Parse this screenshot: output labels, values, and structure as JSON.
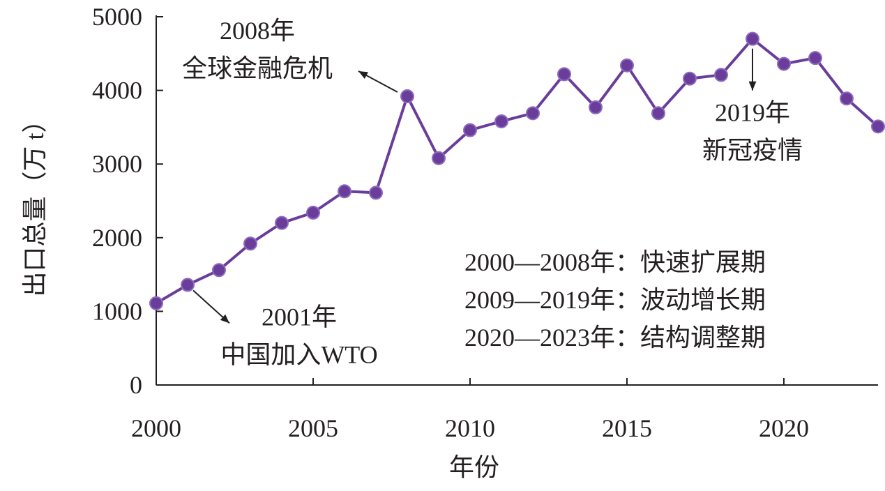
{
  "chart_data": {
    "type": "line",
    "xlabel": "年份",
    "ylabel": "出口总量（万 t）",
    "xlim": [
      2000,
      2023
    ],
    "ylim": [
      0,
      5000
    ],
    "xticks": [
      2000,
      2005,
      2010,
      2015,
      2020
    ],
    "yticks": [
      0,
      1000,
      2000,
      3000,
      4000,
      5000
    ],
    "grid": false,
    "series": [
      {
        "color": "#6a3d9a",
        "x": [
          2000,
          2001,
          2002,
          2003,
          2004,
          2005,
          2006,
          2007,
          2008,
          2009,
          2010,
          2011,
          2012,
          2013,
          2014,
          2015,
          2016,
          2017,
          2018,
          2019,
          2020,
          2021,
          2022,
          2023
        ],
        "values": [
          1110,
          1360,
          1560,
          1920,
          2200,
          2340,
          2630,
          2610,
          3920,
          3080,
          3460,
          3580,
          3690,
          4220,
          3770,
          4340,
          3690,
          4160,
          4210,
          4700,
          4360,
          4440,
          3890,
          3510
        ]
      }
    ],
    "annotations": [
      {
        "id": "wto",
        "lines": [
          "2001年",
          "中国加入WTO"
        ],
        "x": 2001,
        "y": 1360
      },
      {
        "id": "crisis",
        "lines": [
          "2008年",
          "全球金融危机"
        ],
        "x": 2008,
        "y": 3920
      },
      {
        "id": "covid",
        "lines": [
          "2019年",
          "新冠疫情"
        ],
        "x": 2019,
        "y": 4700
      }
    ],
    "legend_text": [
      "2000—2008年：快速扩展期",
      "2009—2019年：波动增长期",
      "2020—2023年：结构调整期"
    ]
  }
}
